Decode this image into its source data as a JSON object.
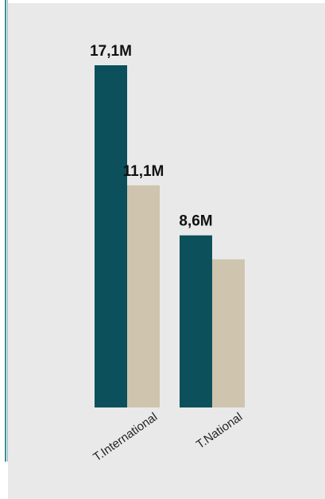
{
  "chart_data": {
    "type": "bar",
    "categories": [
      "T.International",
      "T.National"
    ],
    "series": [
      {
        "values": [
          17.1,
          8.6
        ],
        "labels": [
          "17,1M",
          "8,6M"
        ],
        "color": "#0b505b"
      },
      {
        "values": [
          11.1,
          7.4
        ],
        "labels": [
          "11,1M",
          ""
        ],
        "color": "#cfc4ad"
      }
    ],
    "ylim": [
      0,
      17.1
    ],
    "grid": false,
    "legend": "none"
  },
  "colors": {
    "background": "#e9e9e9",
    "accent_rule": "#3f8f9a"
  }
}
